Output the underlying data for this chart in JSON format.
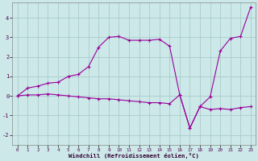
{
  "xlabel": "Windchill (Refroidissement éolien,°C)",
  "ylabel": "",
  "background_color": "#cce8e8",
  "grid_color": "#aacccc",
  "line_color": "#990099",
  "xlim": [
    -0.5,
    23.5
  ],
  "ylim": [
    -2.5,
    4.8
  ],
  "xticks": [
    0,
    1,
    2,
    3,
    4,
    5,
    6,
    7,
    8,
    9,
    10,
    11,
    12,
    13,
    14,
    15,
    16,
    17,
    18,
    19,
    20,
    21,
    22,
    23
  ],
  "yticks": [
    -2,
    -1,
    0,
    1,
    2,
    3,
    4
  ],
  "line1_x": [
    0,
    1,
    2,
    3,
    4,
    5,
    6,
    7,
    8,
    9,
    10,
    11,
    12,
    13,
    14,
    15,
    16,
    17,
    18,
    19,
    20,
    21,
    22,
    23
  ],
  "line1_y": [
    0.0,
    0.4,
    0.5,
    0.65,
    0.7,
    1.0,
    1.1,
    1.5,
    2.5,
    3.0,
    3.05,
    2.85,
    2.85,
    2.85,
    2.9,
    2.55,
    0.05,
    -1.65,
    -0.55,
    -0.05,
    2.3,
    2.95,
    3.05,
    4.55
  ],
  "line2_x": [
    0,
    1,
    2,
    3,
    4,
    5,
    6,
    7,
    8,
    9,
    10,
    11,
    12,
    13,
    14,
    15,
    16,
    17,
    18,
    19,
    20,
    21,
    22,
    23
  ],
  "line2_y": [
    0.0,
    0.05,
    0.05,
    0.1,
    0.05,
    0.0,
    -0.05,
    -0.1,
    -0.15,
    -0.15,
    -0.2,
    -0.25,
    -0.3,
    -0.35,
    -0.35,
    -0.4,
    0.05,
    -1.65,
    -0.55,
    -0.7,
    -0.65,
    -0.7,
    -0.6,
    -0.55
  ]
}
